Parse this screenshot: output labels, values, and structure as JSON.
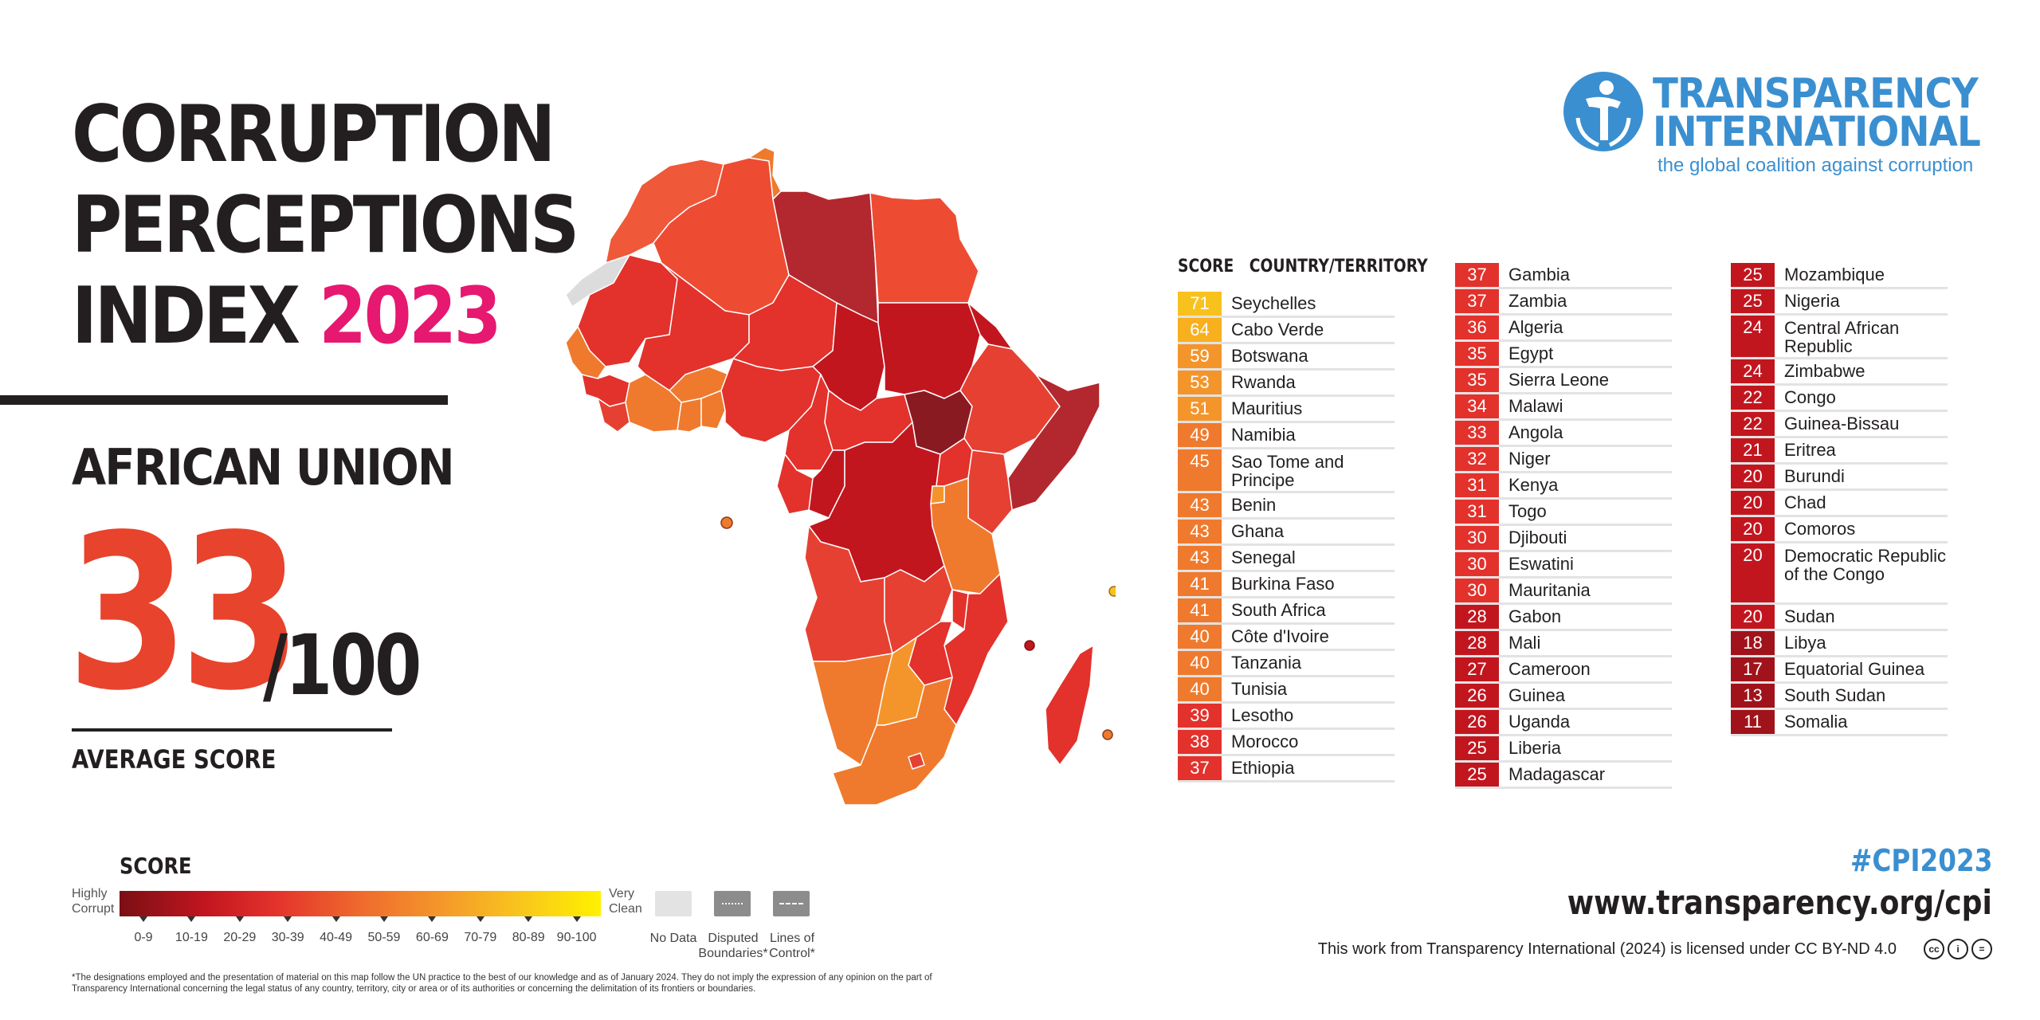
{
  "title": {
    "line1": "CORRUPTION",
    "line2": "PERCEPTIONS",
    "line3_prefix": "INDEX",
    "year": "2023"
  },
  "region": "AFRICAN UNION",
  "average": {
    "score": "33",
    "out_of": "/100",
    "label": "AVERAGE SCORE"
  },
  "logo": {
    "line1": "TRANSPARENCY",
    "line2": "INTERNATIONAL",
    "tagline": "the global coalition against corruption"
  },
  "table_headers": {
    "score": "SCORE",
    "country": "COUNTRY/TERRITORY"
  },
  "colors": {
    "band_90_100": "#fff200",
    "band_70_79": "#f8c21e",
    "band_60_69": "#f8b01f",
    "band_50_59": "#f4952b",
    "band_40_49": "#ef7a2d",
    "band_30_39": "#e3312c",
    "band_20_29": "#c2161f",
    "band_10_19": "#a0131b",
    "accent_pink": "#e6186f",
    "accent_blue": "#3a8fd0",
    "score_red": "#e8432c"
  },
  "rankings": [
    {
      "score": 71,
      "name": "Seychelles"
    },
    {
      "score": 64,
      "name": "Cabo Verde"
    },
    {
      "score": 59,
      "name": "Botswana"
    },
    {
      "score": 53,
      "name": "Rwanda"
    },
    {
      "score": 51,
      "name": "Mauritius"
    },
    {
      "score": 49,
      "name": "Namibia"
    },
    {
      "score": 45,
      "name": "Sao Tome and Principe"
    },
    {
      "score": 43,
      "name": "Benin"
    },
    {
      "score": 43,
      "name": "Ghana"
    },
    {
      "score": 43,
      "name": "Senegal"
    },
    {
      "score": 41,
      "name": "Burkina Faso"
    },
    {
      "score": 41,
      "name": "South Africa"
    },
    {
      "score": 40,
      "name": "Côte d'Ivoire"
    },
    {
      "score": 40,
      "name": "Tanzania"
    },
    {
      "score": 40,
      "name": "Tunisia"
    },
    {
      "score": 39,
      "name": "Lesotho"
    },
    {
      "score": 38,
      "name": "Morocco"
    },
    {
      "score": 37,
      "name": "Ethiopia"
    },
    {
      "score": 37,
      "name": "Gambia"
    },
    {
      "score": 37,
      "name": "Zambia"
    },
    {
      "score": 36,
      "name": "Algeria"
    },
    {
      "score": 35,
      "name": "Egypt"
    },
    {
      "score": 35,
      "name": "Sierra Leone"
    },
    {
      "score": 34,
      "name": "Malawi"
    },
    {
      "score": 33,
      "name": "Angola"
    },
    {
      "score": 32,
      "name": "Niger"
    },
    {
      "score": 31,
      "name": "Kenya"
    },
    {
      "score": 31,
      "name": "Togo"
    },
    {
      "score": 30,
      "name": "Djibouti"
    },
    {
      "score": 30,
      "name": "Eswatini"
    },
    {
      "score": 30,
      "name": "Mauritania"
    },
    {
      "score": 28,
      "name": "Gabon"
    },
    {
      "score": 28,
      "name": "Mali"
    },
    {
      "score": 27,
      "name": "Cameroon"
    },
    {
      "score": 26,
      "name": "Guinea"
    },
    {
      "score": 26,
      "name": "Uganda"
    },
    {
      "score": 25,
      "name": "Liberia"
    },
    {
      "score": 25,
      "name": "Madagascar"
    },
    {
      "score": 25,
      "name": "Mozambique"
    },
    {
      "score": 25,
      "name": "Nigeria"
    },
    {
      "score": 24,
      "name": "Central African Republic"
    },
    {
      "score": 24,
      "name": "Zimbabwe"
    },
    {
      "score": 22,
      "name": "Congo"
    },
    {
      "score": 22,
      "name": "Guinea-Bissau"
    },
    {
      "score": 21,
      "name": "Eritrea"
    },
    {
      "score": 20,
      "name": "Burundi"
    },
    {
      "score": 20,
      "name": "Chad"
    },
    {
      "score": 20,
      "name": "Comoros"
    },
    {
      "score": 20,
      "name": "Democratic Republic of the Congo"
    },
    {
      "score": 20,
      "name": "Sudan"
    },
    {
      "score": 18,
      "name": "Libya"
    },
    {
      "score": 17,
      "name": "Equatorial Guinea"
    },
    {
      "score": 13,
      "name": "South Sudan"
    },
    {
      "score": 11,
      "name": "Somalia"
    }
  ],
  "legend": {
    "title": "SCORE",
    "highly_corrupt": "Highly Corrupt",
    "very_clean": "Very Clean",
    "ranges": [
      "0-9",
      "10-19",
      "20-29",
      "30-39",
      "40-49",
      "50-59",
      "60-69",
      "70-79",
      "80-89",
      "90-100"
    ],
    "no_data": "No Data",
    "disputed": "Disputed Boundaries*",
    "lines_of_control": "Lines of Control*"
  },
  "footnote": "*The designations employed and the presentation of material on this map follow the UN practice to the best of our knowledge and as of January 2024. They do not imply the expression of any opinion on the part of Transparency International concerning the legal status of any country, territory, city or area or of its authorities or concerning the delimitation of its frontiers or boundaries.",
  "hashtag": "#CPI2023",
  "url": "www.transparency.org/cpi",
  "license": "This work from Transparency International (2024) is licensed under CC BY-ND 4.0",
  "cc_icons": [
    "cc-icon",
    "by-icon",
    "nd-icon"
  ]
}
